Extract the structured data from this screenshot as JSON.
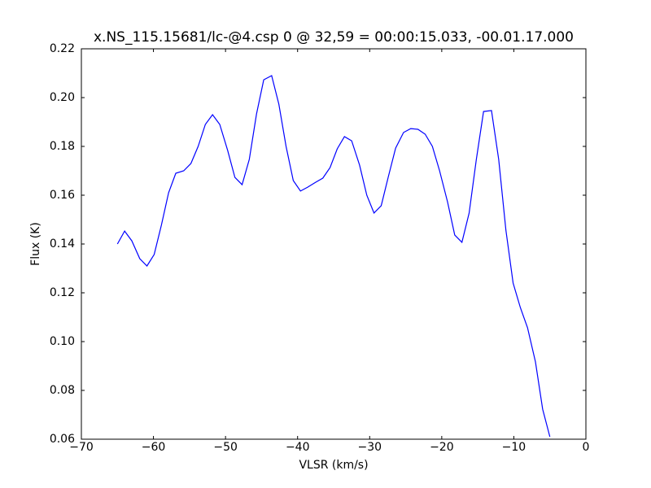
{
  "chart_data": {
    "type": "line",
    "title": "x.NS_115.15681/lc-@4.csp 0 @ 32,59 = 00:00:15.033, -00.01.17.000",
    "x_label": "VLSR (km/s)",
    "y_label": "Flux (K)",
    "x": [
      -65.0,
      -64.0,
      -63.0,
      -61.9,
      -60.9,
      -59.9,
      -58.9,
      -57.9,
      -56.9,
      -55.8,
      -54.8,
      -53.8,
      -52.8,
      -51.8,
      -50.8,
      -49.7,
      -48.7,
      -47.7,
      -46.7,
      -45.7,
      -44.7,
      -43.6,
      -42.6,
      -41.6,
      -40.6,
      -39.6,
      -38.6,
      -37.5,
      -36.5,
      -35.5,
      -34.5,
      -33.5,
      -32.5,
      -31.4,
      -30.4,
      -29.4,
      -28.4,
      -27.4,
      -26.4,
      -25.3,
      -24.3,
      -23.3,
      -22.3,
      -21.3,
      -20.3,
      -19.2,
      -18.2,
      -17.2,
      -16.2,
      -15.2,
      -14.2,
      -13.1,
      -12.1,
      -11.1,
      -10.1,
      -9.1,
      -8.1,
      -7.0,
      -6.0,
      -5.0
    ],
    "series": [
      {
        "color": "#0000ff",
        "values": [
          0.14,
          0.1453,
          0.1413,
          0.134,
          0.131,
          0.1357,
          0.1477,
          0.161,
          0.169,
          0.17,
          0.173,
          0.18,
          0.189,
          0.193,
          0.189,
          0.1783,
          0.1673,
          0.1643,
          0.1747,
          0.1933,
          0.2073,
          0.209,
          0.1973,
          0.18,
          0.166,
          0.1617,
          0.1633,
          0.1653,
          0.167,
          0.1713,
          0.179,
          0.184,
          0.1823,
          0.1723,
          0.16,
          0.1527,
          0.1557,
          0.1677,
          0.1793,
          0.1857,
          0.1873,
          0.187,
          0.185,
          0.18,
          0.17,
          0.1573,
          0.1437,
          0.1407,
          0.1527,
          0.1747,
          0.1943,
          0.1947,
          0.1747,
          0.1457,
          0.124,
          0.114,
          0.1057,
          0.0917,
          0.0723,
          0.061
        ]
      }
    ],
    "xlim": [
      -70,
      0
    ],
    "xticks": [
      {
        "value": -70,
        "label": "−70"
      },
      {
        "value": -60,
        "label": "−60"
      },
      {
        "value": -50,
        "label": "−50"
      },
      {
        "value": -40,
        "label": "−40"
      },
      {
        "value": -30,
        "label": "−30"
      },
      {
        "value": -20,
        "label": "−20"
      },
      {
        "value": -10,
        "label": "−10"
      },
      0
    ],
    "ylim": [
      0.06,
      0.22
    ],
    "yticks": [
      0.06,
      0.08,
      {
        "value": 0.1,
        "label": "0.10"
      },
      0.12,
      0.14,
      0.16,
      0.18,
      {
        "value": 0.2,
        "label": "0.20"
      },
      0.22
    ],
    "grid": false
  }
}
